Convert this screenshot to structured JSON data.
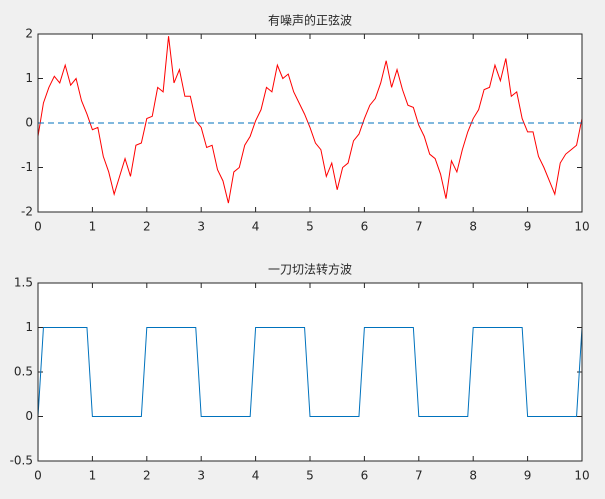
{
  "chart_data": [
    {
      "type": "line",
      "title": "有噪声的正弦波",
      "x": [
        0,
        0.1,
        0.2,
        0.3,
        0.4,
        0.5,
        0.6,
        0.7,
        0.8,
        0.9,
        1,
        1.1,
        1.2,
        1.3,
        1.4,
        1.5,
        1.6,
        1.7,
        1.8,
        1.9,
        2,
        2.1,
        2.2,
        2.3,
        2.4,
        2.5,
        2.6,
        2.7,
        2.8,
        2.9,
        3,
        3.1,
        3.2,
        3.3,
        3.4,
        3.5,
        3.6,
        3.7,
        3.8,
        3.9,
        4,
        4.1,
        4.2,
        4.3,
        4.4,
        4.5,
        4.6,
        4.7,
        4.8,
        4.9,
        5,
        5.1,
        5.2,
        5.3,
        5.4,
        5.5,
        5.6,
        5.7,
        5.8,
        5.9,
        6,
        6.1,
        6.2,
        6.3,
        6.4,
        6.5,
        6.6,
        6.7,
        6.8,
        6.9,
        7,
        7.1,
        7.2,
        7.3,
        7.4,
        7.5,
        7.6,
        7.7,
        7.8,
        7.9,
        8,
        8.1,
        8.2,
        8.3,
        8.4,
        8.5,
        8.6,
        8.7,
        8.8,
        8.9,
        9,
        9.1,
        9.2,
        9.3,
        9.4,
        9.5,
        9.6,
        9.7,
        9.8,
        9.9,
        10
      ],
      "series": [
        {
          "color": "#ff0000",
          "values": [
            -0.3,
            0.45,
            0.8,
            1.05,
            0.9,
            1.3,
            0.85,
            1.0,
            0.5,
            0.2,
            -0.15,
            -0.1,
            -0.75,
            -1.1,
            -1.6,
            -1.2,
            -0.8,
            -1.2,
            -0.5,
            -0.45,
            0.1,
            0.15,
            0.8,
            0.7,
            1.95,
            0.9,
            1.2,
            0.6,
            0.6,
            0.05,
            -0.1,
            -0.55,
            -0.5,
            -1.05,
            -1.3,
            -1.8,
            -1.1,
            -1.0,
            -0.5,
            -0.3,
            0.05,
            0.3,
            0.8,
            0.7,
            1.3,
            1.0,
            1.1,
            0.7,
            0.45,
            0.2,
            -0.1,
            -0.45,
            -0.6,
            -1.2,
            -0.9,
            -1.5,
            -1.0,
            -0.9,
            -0.4,
            -0.25,
            0.1,
            0.4,
            0.55,
            0.9,
            1.4,
            0.8,
            1.2,
            0.75,
            0.4,
            0.35,
            -0.05,
            -0.3,
            -0.7,
            -0.8,
            -1.15,
            -1.7,
            -0.85,
            -1.1,
            -0.6,
            -0.2,
            0.1,
            0.3,
            0.75,
            0.8,
            1.3,
            0.95,
            1.45,
            0.6,
            0.7,
            0.1,
            -0.2,
            -0.2,
            -0.75,
            -1.0,
            -1.3,
            -1.6,
            -0.9,
            -0.7,
            -0.6,
            -0.5,
            0.1
          ]
        },
        {
          "color": "#0072bd",
          "dashed": true,
          "x": [
            0,
            10
          ],
          "values": [
            0,
            0
          ]
        }
      ],
      "xlim": [
        0,
        10
      ],
      "xticks": [
        0,
        1,
        2,
        3,
        4,
        5,
        6,
        7,
        8,
        9,
        10
      ],
      "ylim": [
        -2,
        2
      ],
      "yticks": [
        -2,
        -1,
        0,
        1,
        2
      ]
    },
    {
      "type": "line",
      "title": "一刀切法转方波",
      "x": [
        0,
        0.1,
        0.2,
        0.3,
        0.4,
        0.5,
        0.6,
        0.7,
        0.8,
        0.9,
        1,
        1.1,
        1.2,
        1.3,
        1.4,
        1.5,
        1.6,
        1.7,
        1.8,
        1.9,
        2,
        2.1,
        2.2,
        2.3,
        2.4,
        2.5,
        2.6,
        2.7,
        2.8,
        2.9,
        3,
        3.1,
        3.2,
        3.3,
        3.4,
        3.5,
        3.6,
        3.7,
        3.8,
        3.9,
        4,
        4.1,
        4.2,
        4.3,
        4.4,
        4.5,
        4.6,
        4.7,
        4.8,
        4.9,
        5,
        5.1,
        5.2,
        5.3,
        5.4,
        5.5,
        5.6,
        5.7,
        5.8,
        5.9,
        6,
        6.1,
        6.2,
        6.3,
        6.4,
        6.5,
        6.6,
        6.7,
        6.8,
        6.9,
        7,
        7.1,
        7.2,
        7.3,
        7.4,
        7.5,
        7.6,
        7.7,
        7.8,
        7.9,
        8,
        8.1,
        8.2,
        8.3,
        8.4,
        8.5,
        8.6,
        8.7,
        8.8,
        8.9,
        9,
        9.1,
        9.2,
        9.3,
        9.4,
        9.5,
        9.6,
        9.7,
        9.8,
        9.9,
        10
      ],
      "series": [
        {
          "color": "#0072bd",
          "values": [
            0,
            1,
            1,
            1,
            1,
            1,
            1,
            1,
            1,
            1,
            0,
            0,
            0,
            0,
            0,
            0,
            0,
            0,
            0,
            0,
            1,
            1,
            1,
            1,
            1,
            1,
            1,
            1,
            1,
            1,
            0,
            0,
            0,
            0,
            0,
            0,
            0,
            0,
            0,
            0,
            1,
            1,
            1,
            1,
            1,
            1,
            1,
            1,
            1,
            1,
            0,
            0,
            0,
            0,
            0,
            0,
            0,
            0,
            0,
            0,
            1,
            1,
            1,
            1,
            1,
            1,
            1,
            1,
            1,
            1,
            0,
            0,
            0,
            0,
            0,
            0,
            0,
            0,
            0,
            0,
            1,
            1,
            1,
            1,
            1,
            1,
            1,
            1,
            1,
            1,
            0,
            0,
            0,
            0,
            0,
            0,
            0,
            0,
            0,
            0,
            1
          ]
        }
      ],
      "xlim": [
        0,
        10
      ],
      "xticks": [
        0,
        1,
        2,
        3,
        4,
        5,
        6,
        7,
        8,
        9,
        10
      ],
      "ylim": [
        -0.5,
        1.5
      ],
      "yticks": [
        -0.5,
        0,
        0.5,
        1,
        1.5
      ]
    }
  ]
}
